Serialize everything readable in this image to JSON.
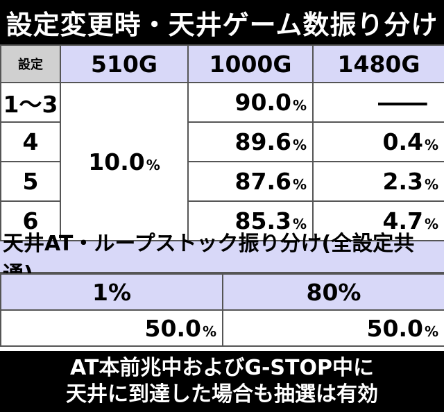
{
  "title": "設定変更時・天井ゲーム数振り分け",
  "table1": {
    "corner_label": "設定",
    "columns": [
      "510G",
      "1000G",
      "1480G"
    ],
    "merged_510g": "10.0",
    "rows": [
      {
        "label": "1〜3",
        "g1000": "90.0",
        "g1480": "—"
      },
      {
        "label": "4",
        "g1000": "89.6",
        "g1480": "0.4"
      },
      {
        "label": "5",
        "g1000": "87.6",
        "g1480": "2.3"
      },
      {
        "label": "6",
        "g1000": "85.3",
        "g1480": "4.7"
      }
    ],
    "unit": "%"
  },
  "table2": {
    "title": "天井AT・ループストック振り分け(全設定共通)",
    "columns": [
      "1%",
      "80%"
    ],
    "values": [
      "50.0",
      "50.0"
    ],
    "unit": "%"
  },
  "footer": {
    "line1": "AT本前兆中およびG-STOP中に",
    "line2": "天井に到達した場合も抽選は有効"
  }
}
